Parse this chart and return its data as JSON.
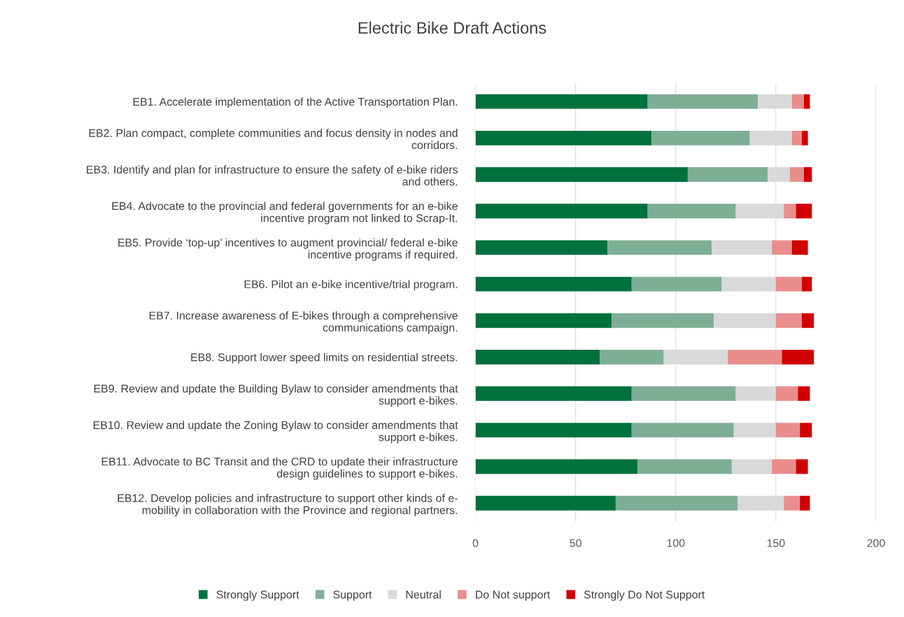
{
  "chart_data": {
    "type": "bar",
    "orientation": "horizontal",
    "stacked": true,
    "title": "Electric Bike Draft Actions",
    "categories": [
      "EB1. Accelerate implementation of the Active Transportation Plan.",
      "EB2. Plan compact, complete communities and focus density in nodes and\ncorridors.",
      "EB3. Identify and plan for infrastructure to ensure the safety of e-bike riders\nand others.",
      "EB4. Advocate to the provincial and federal governments for an e-bike\nincentive program not linked to Scrap-It.",
      "EB5. Provide ‘top-up’ incentives to augment provincial/ federal e-bike\nincentive programs if required.",
      "EB6. Pilot an e-bike incentive/trial program.",
      "EB7. Increase awareness of E-bikes through a comprehensive\ncommunications campaign.",
      "EB8. Support lower speed limits on residential streets.",
      "EB9. Review and update the Building Bylaw to consider amendments that\nsupport e-bikes.",
      "EB10. Review and update the Zoning Bylaw to consider amendments that\nsupport e-bikes.",
      "EB11. Advocate to BC Transit and the CRD to update their infrastructure\ndesign guidelines to support e-bikes.",
      "EB12. Develop policies and infrastructure to support other kinds of e-\nmobility in collaboration with the Province and regional partners."
    ],
    "series": [
      {
        "name": "Strongly Support",
        "color": "#00703c",
        "values": [
          86,
          88,
          106,
          86,
          66,
          78,
          68,
          62,
          78,
          78,
          81,
          70
        ]
      },
      {
        "name": "Support",
        "color": "#7fae96",
        "values": [
          55,
          49,
          40,
          44,
          52,
          45,
          51,
          32,
          52,
          51,
          47,
          61
        ]
      },
      {
        "name": "Neutral",
        "color": "#d9d9d9",
        "values": [
          17,
          21,
          11,
          24,
          30,
          27,
          31,
          32,
          20,
          21,
          20,
          23
        ]
      },
      {
        "name": "Do Not support",
        "color": "#e88e8e",
        "values": [
          6,
          5,
          7,
          6,
          10,
          13,
          13,
          27,
          11,
          12,
          12,
          8
        ]
      },
      {
        "name": "Strongly Do Not Support",
        "color": "#d00000",
        "values": [
          3,
          3,
          4,
          8,
          8,
          5,
          6,
          16,
          6,
          6,
          6,
          5
        ]
      }
    ],
    "xlim": [
      0,
      200
    ],
    "xticks": [
      0,
      50,
      100,
      150,
      200
    ],
    "grid": "x",
    "legend": "bottom"
  }
}
